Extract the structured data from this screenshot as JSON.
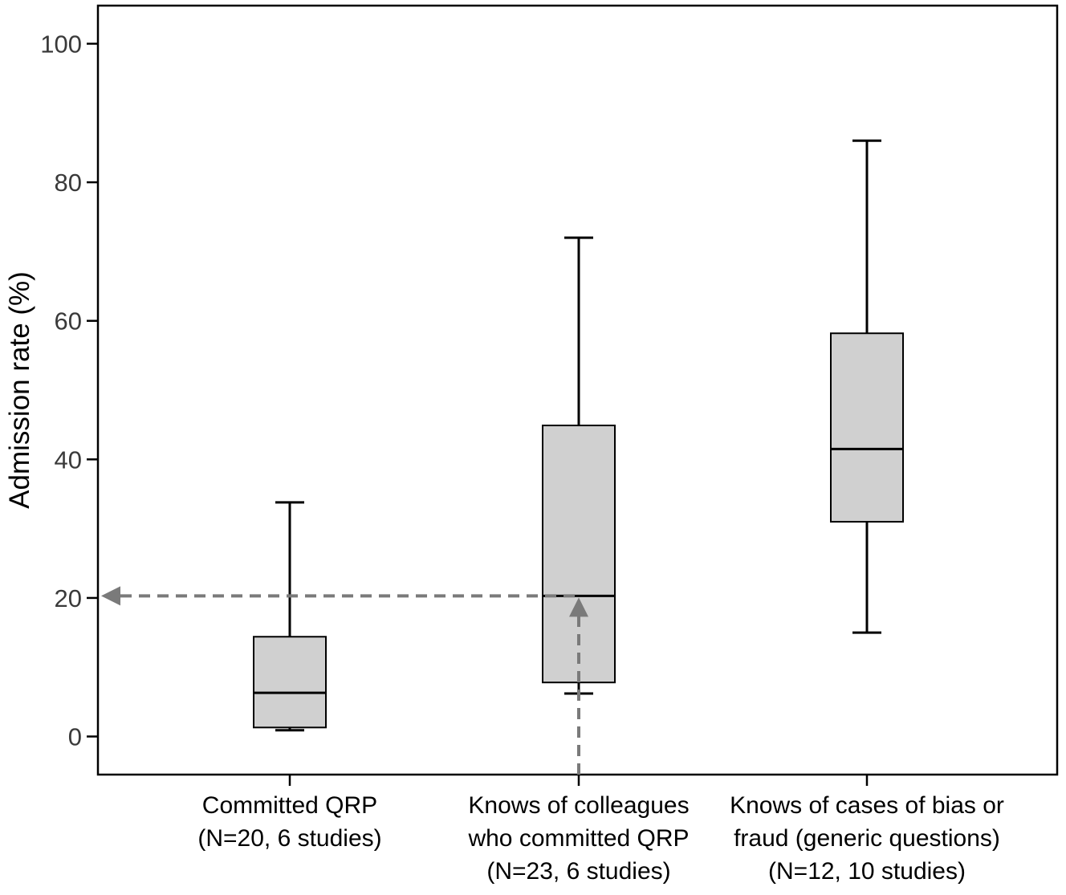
{
  "chart_data": {
    "type": "box",
    "ylabel": "Admission rate (%)",
    "xlabel": "",
    "title": "",
    "ylim": [
      -5.5,
      105.5
    ],
    "yticks": [
      0,
      20,
      40,
      60,
      80,
      100
    ],
    "grid": false,
    "categories": [
      [
        "Committed QRP",
        "(N=20, 6 studies)"
      ],
      [
        "Knows of colleagues",
        "who committed QRP",
        "(N=23, 6 studies)"
      ],
      [
        "Knows of cases of bias or",
        "fraud (generic questions)",
        "(N=12, 10 studies)"
      ]
    ],
    "boxes": [
      {
        "whisker_low": 0.9,
        "q1": 1.3,
        "median": 6.3,
        "q3": 14.4,
        "whisker_high": 33.8
      },
      {
        "whisker_low": 6.2,
        "q1": 7.8,
        "median": 20.3,
        "q3": 44.9,
        "whisker_high": 72.0
      },
      {
        "whisker_low": 15.0,
        "q1": 31.0,
        "median": 41.5,
        "q3": 58.2,
        "whisker_high": 86.0
      }
    ],
    "annotation": {
      "type": "dashed-arrows",
      "value": 20.3,
      "category_index": 1
    },
    "colors": {
      "box_fill": "#d0d0d0",
      "stroke": "#000000",
      "arrow": "#7a7a7a"
    }
  }
}
